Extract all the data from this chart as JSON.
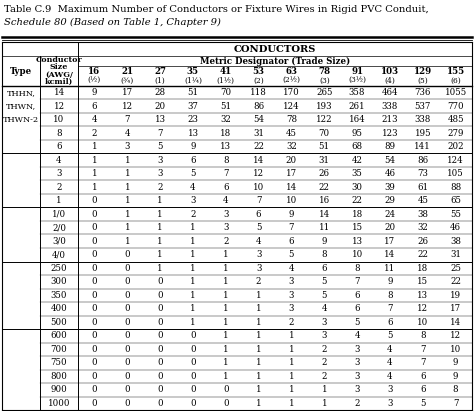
{
  "title_line1": "Table C.9  Maximum Number of Conductors or Fixture Wires in Rigid PVC Conduit,",
  "title_line2": "Schedule 80 (Based on Table 1, Chapter 9)",
  "conductors_label": "CONDUCTORS",
  "metric_label": "Metric Designator (Trade Size)",
  "conductor_size_label": "Conductor\nSize\n(AWG/\nkcmil)",
  "type_label": "Type",
  "col_headers_top": [
    "16",
    "21",
    "27",
    "35",
    "41",
    "53",
    "63",
    "78",
    "91",
    "103",
    "129",
    "155"
  ],
  "col_headers_bot": [
    "(½)",
    "(¾)",
    "(1)",
    "(1¼)",
    "(1½)",
    "(2)",
    "(2½)",
    "(3)",
    "(3½)",
    "(4)",
    "(5)",
    "(6)"
  ],
  "type_labels": [
    "THHN,",
    "THWN,",
    "THWN-2"
  ],
  "row_labels": [
    "14",
    "12",
    "10",
    "8",
    "6",
    "4",
    "3",
    "2",
    "1",
    "1/0",
    "2/0",
    "3/0",
    "4/0",
    "250",
    "300",
    "350",
    "400",
    "500",
    "600",
    "700",
    "750",
    "800",
    "900",
    "1000"
  ],
  "data": [
    [
      9,
      17,
      28,
      51,
      70,
      118,
      170,
      265,
      358,
      464,
      736,
      1055
    ],
    [
      6,
      12,
      20,
      37,
      51,
      86,
      124,
      193,
      261,
      338,
      537,
      770
    ],
    [
      4,
      7,
      13,
      23,
      32,
      54,
      78,
      122,
      164,
      213,
      338,
      485
    ],
    [
      2,
      4,
      7,
      13,
      18,
      31,
      45,
      70,
      95,
      123,
      195,
      279
    ],
    [
      1,
      3,
      5,
      9,
      13,
      22,
      32,
      51,
      68,
      89,
      141,
      202
    ],
    [
      1,
      1,
      3,
      6,
      8,
      14,
      20,
      31,
      42,
      54,
      86,
      124
    ],
    [
      1,
      1,
      3,
      5,
      7,
      12,
      17,
      26,
      35,
      46,
      73,
      105
    ],
    [
      1,
      1,
      2,
      4,
      6,
      10,
      14,
      22,
      30,
      39,
      61,
      88
    ],
    [
      0,
      1,
      1,
      3,
      4,
      7,
      10,
      16,
      22,
      29,
      45,
      65
    ],
    [
      0,
      1,
      1,
      2,
      3,
      6,
      9,
      14,
      18,
      24,
      38,
      55
    ],
    [
      0,
      1,
      1,
      1,
      3,
      5,
      7,
      11,
      15,
      20,
      32,
      46
    ],
    [
      0,
      1,
      1,
      1,
      2,
      4,
      6,
      9,
      13,
      17,
      26,
      38
    ],
    [
      0,
      0,
      1,
      1,
      1,
      3,
      5,
      8,
      10,
      14,
      22,
      31
    ],
    [
      0,
      0,
      1,
      1,
      1,
      3,
      4,
      6,
      8,
      11,
      18,
      25
    ],
    [
      0,
      0,
      0,
      1,
      1,
      2,
      3,
      5,
      7,
      9,
      15,
      22
    ],
    [
      0,
      0,
      0,
      1,
      1,
      1,
      3,
      5,
      6,
      8,
      13,
      19
    ],
    [
      0,
      0,
      0,
      1,
      1,
      1,
      3,
      4,
      6,
      7,
      12,
      17
    ],
    [
      0,
      0,
      0,
      1,
      1,
      1,
      2,
      3,
      5,
      6,
      10,
      14
    ],
    [
      0,
      0,
      0,
      0,
      1,
      1,
      1,
      3,
      4,
      5,
      8,
      12
    ],
    [
      0,
      0,
      0,
      0,
      1,
      1,
      1,
      2,
      3,
      4,
      7,
      10
    ],
    [
      0,
      0,
      0,
      0,
      1,
      1,
      1,
      2,
      3,
      4,
      7,
      9
    ],
    [
      0,
      0,
      0,
      0,
      1,
      1,
      1,
      2,
      3,
      4,
      6,
      9
    ],
    [
      0,
      0,
      0,
      0,
      0,
      1,
      1,
      1,
      3,
      3,
      6,
      8
    ],
    [
      0,
      0,
      0,
      0,
      0,
      1,
      1,
      1,
      2,
      3,
      5,
      7
    ]
  ],
  "group_separator_rows": [
    5,
    9,
    13,
    18
  ],
  "background_color": "#ffffff",
  "font_size": 6.2,
  "title_font_size": 7.2
}
